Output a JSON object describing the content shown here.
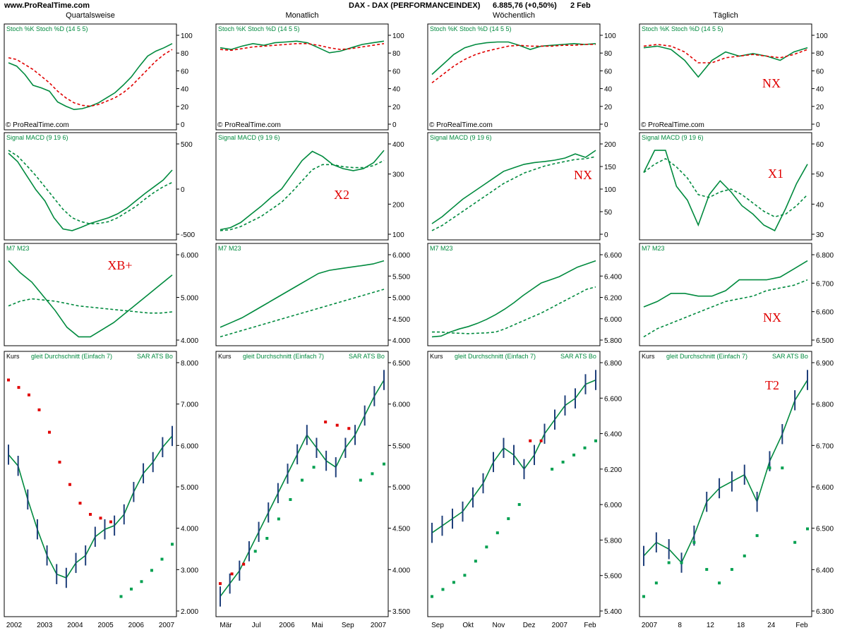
{
  "header": {
    "site": "www.ProRealTime.com",
    "instrument": "DAX - DAX (PERFORMANCEINDEX)",
    "quote": "6.885,76 (+0,50%)",
    "date": "2 Feb"
  },
  "columns": [
    {
      "title": "Quartalsweise",
      "xticks": [
        "2002",
        "2003",
        "2004",
        "2005",
        "2006",
        "2007"
      ]
    },
    {
      "title": "Monatlich",
      "xticks": [
        "Mär",
        "Jul",
        "2006",
        "Mai",
        "Sep",
        "2007"
      ]
    },
    {
      "title": "Wöchentlich",
      "xticks": [
        "Sep",
        "Okt",
        "Nov",
        "Dez",
        "2007",
        "Feb"
      ]
    },
    {
      "title": "Täglich",
      "xticks": [
        "2007",
        "8",
        "12",
        "18",
        "24",
        "Feb"
      ]
    }
  ],
  "colors": {
    "green": "#008a3e",
    "red": "#e00000",
    "bar": "#1f3f7a",
    "sar_green": "#00a050",
    "sar_red": "#e00000",
    "grid": "#c8c8c8",
    "box": "#2a3aa0"
  },
  "rows": [
    {
      "legend": [
        "Stoch %K Stoch %D (14 5 5)"
      ],
      "watermark": "© ProRealTime.com"
    },
    {
      "legend": [
        "Signal MACD (9 19 6)"
      ]
    },
    {
      "legend": [
        "M7 M23"
      ]
    },
    {
      "legend": [
        "Kurs",
        "gleit Durchschnitt (Einfach 7)",
        "SAR ATS Bo"
      ]
    }
  ],
  "yticks": [
    [
      [
        "100",
        "80",
        "60",
        "40",
        "20",
        "0"
      ],
      [
        "100",
        "80",
        "60",
        "40",
        "20",
        "0"
      ],
      [
        "100",
        "80",
        "60",
        "40",
        "20",
        "0"
      ],
      [
        "100",
        "80",
        "60",
        "40",
        "20",
        "0"
      ]
    ],
    [
      [
        "500",
        "0",
        "-500"
      ],
      [
        "400",
        "300",
        "200",
        "100"
      ],
      [
        "200",
        "150",
        "100",
        "50",
        "0"
      ],
      [
        "60",
        "50",
        "40",
        "30"
      ]
    ],
    [
      [
        "6.000",
        "5.000",
        "4.000"
      ],
      [
        "6.000",
        "5.500",
        "5.000",
        "4.500",
        "4.000"
      ],
      [
        "6.600",
        "6.400",
        "6.200",
        "6.000",
        "5.800"
      ],
      [
        "6.800",
        "6.700",
        "6.600",
        "6.500"
      ]
    ],
    [
      [
        "8.000",
        "7.000",
        "6.000",
        "5.000",
        "4.000",
        "3.000",
        "2.000"
      ],
      [
        "6.500",
        "6.000",
        "5.500",
        "5.000",
        "4.500",
        "4.000",
        "3.500"
      ],
      [
        "6.800",
        "6.600",
        "6.400",
        "6.200",
        "6.000",
        "5.800",
        "5.600",
        "5.400"
      ],
      [
        "6.900",
        "6.800",
        "6.700",
        "6.600",
        "6.500",
        "6.400",
        "6.300"
      ]
    ]
  ],
  "annotations": [
    {
      "row": 1,
      "col": 1,
      "text": "X2"
    },
    {
      "row": 0,
      "col": 3,
      "text": "NX"
    },
    {
      "row": 1,
      "col": 2,
      "text": "NX"
    },
    {
      "row": 1,
      "col": 3,
      "text": "X1"
    },
    {
      "row": 2,
      "col": 0,
      "text": "XB+"
    },
    {
      "row": 2,
      "col": 3,
      "text": "NX"
    },
    {
      "row": 3,
      "col": 3,
      "text": "T2"
    }
  ],
  "chart_data": {
    "type": "line",
    "title": "DAX - DAX (PERFORMANCEINDEX) 6.885,76 (+0,50%) 2 Feb",
    "layout": "4x4 panel grid: columns = timeframe (quarterly, monthly, weekly, daily), rows = Stochastic, MACD signal, M7/M23 moving averages, price",
    "panels": [
      {
        "row": 0,
        "col": 0,
        "indicator": "Stoch",
        "k": [
          72,
          68,
          58,
          45,
          42,
          38,
          25,
          20,
          16,
          17,
          20,
          24,
          30,
          36,
          45,
          55,
          68,
          80,
          86,
          90,
          95
        ],
        "d": [
          78,
          76,
          70,
          64,
          56,
          48,
          38,
          30,
          24,
          21,
          20,
          22,
          26,
          30,
          36,
          44,
          54,
          64,
          74,
          82,
          88
        ]
      },
      {
        "row": 0,
        "col": 1,
        "indicator": "Stoch",
        "k": [
          90,
          88,
          92,
          95,
          93,
          96,
          97,
          98,
          96,
          90,
          84,
          86,
          90,
          94,
          96,
          98
        ],
        "d": [
          88,
          87,
          89,
          91,
          92,
          93,
          94,
          95,
          95,
          93,
          90,
          88,
          89,
          91,
          93,
          95
        ]
      },
      {
        "row": 0,
        "col": 2,
        "indicator": "Stoch",
        "k": [
          58,
          70,
          82,
          90,
          94,
          96,
          97,
          97,
          93,
          88,
          92,
          93,
          94,
          95,
          94,
          95
        ],
        "d": [
          48,
          58,
          68,
          76,
          82,
          86,
          89,
          92,
          93,
          92,
          92,
          92,
          93,
          93,
          94,
          94
        ]
      },
      {
        "row": 0,
        "col": 3,
        "indicator": "Stoch",
        "k": [
          90,
          92,
          88,
          75,
          55,
          75,
          85,
          80,
          83,
          80,
          75,
          85,
          90
        ],
        "d": [
          92,
          94,
          92,
          85,
          72,
          72,
          78,
          80,
          82,
          80,
          78,
          82,
          88
        ]
      },
      {
        "row": 1,
        "col": 0,
        "indicator": "MACD",
        "macd": [
          900,
          750,
          500,
          250,
          50,
          -250,
          -450,
          -480,
          -420,
          -350,
          -300,
          -250,
          -180,
          -80,
          50,
          180,
          300,
          420,
          600
        ],
        "signal": [
          950,
          850,
          680,
          500,
          300,
          100,
          -100,
          -250,
          -320,
          -360,
          -350,
          -320,
          -250,
          -150,
          -50,
          80,
          200,
          300,
          380
        ]
      },
      {
        "row": 1,
        "col": 1,
        "indicator": "MACD",
        "macd": [
          100,
          110,
          135,
          175,
          215,
          260,
          300,
          370,
          440,
          485,
          460,
          420,
          400,
          390,
          400,
          430,
          490
        ],
        "signal": [
          95,
          100,
          115,
          140,
          165,
          200,
          235,
          285,
          340,
          395,
          420,
          420,
          410,
          405,
          405,
          415,
          440
        ]
      },
      {
        "row": 1,
        "col": 2,
        "indicator": "MACD",
        "macd": [
          0,
          20,
          45,
          70,
          90,
          110,
          130,
          150,
          160,
          170,
          175,
          178,
          182,
          188,
          200,
          190,
          210
        ],
        "signal": [
          -20,
          -5,
          15,
          35,
          55,
          75,
          95,
          115,
          130,
          145,
          155,
          165,
          172,
          178,
          184,
          186,
          192
        ]
      },
      {
        "row": 1,
        "col": 3,
        "indicator": "MACD",
        "macd": [
          52,
          60,
          60,
          47,
          42,
          33,
          44,
          49,
          45,
          40,
          37,
          33,
          31,
          39,
          48,
          55
        ],
        "signal": [
          52,
          55,
          57,
          54,
          50,
          44,
          43,
          45,
          46,
          44,
          41,
          38,
          36,
          37,
          40,
          44
        ]
      },
      {
        "row": 2,
        "col": 0,
        "indicator": "M7 M23",
        "m7": [
          6800,
          6300,
          5900,
          5300,
          4700,
          4000,
          3600,
          3600,
          3900,
          4200,
          4600,
          5000,
          5400,
          5800,
          6200
        ],
        "m23": [
          4900,
          5100,
          5200,
          5150,
          5100,
          5000,
          4900,
          4850,
          4800,
          4750,
          4700,
          4650,
          4600,
          4600,
          4650
        ]
      },
      {
        "row": 2,
        "col": 1,
        "indicator": "M7 M23",
        "m7": [
          4000,
          4150,
          4300,
          4500,
          4700,
          4900,
          5100,
          5300,
          5500,
          5700,
          5800,
          5850,
          5900,
          5950,
          6000,
          6100
        ],
        "m23": [
          3700,
          3800,
          3900,
          4000,
          4100,
          4200,
          4300,
          4400,
          4500,
          4600,
          4700,
          4800,
          4900,
          5000,
          5100,
          5200
        ]
      },
      {
        "row": 2,
        "col": 2,
        "indicator": "M7 M23",
        "m7": [
          5700,
          5710,
          5760,
          5800,
          5830,
          5870,
          5920,
          5980,
          6050,
          6130,
          6220,
          6300,
          6380,
          6420,
          6460,
          6520,
          6580,
          6620,
          6660
        ],
        "m23": [
          5760,
          5760,
          5750,
          5745,
          5740,
          5745,
          5750,
          5760,
          5800,
          5850,
          5900,
          5950,
          6000,
          6060,
          6120,
          6180,
          6240,
          6300,
          6330
        ]
      },
      {
        "row": 2,
        "col": 3,
        "indicator": "M7 M23",
        "m7": [
          6620,
          6640,
          6670,
          6670,
          6660,
          6660,
          6680,
          6720,
          6720,
          6720,
          6730,
          6760,
          6790
        ],
        "m23": [
          6510,
          6540,
          6560,
          6580,
          6600,
          6620,
          6640,
          6650,
          6660,
          6680,
          6690,
          6700,
          6720
        ]
      },
      {
        "row": 3,
        "col": 0,
        "indicator": "Kurs",
        "close": [
          6200,
          5900,
          5000,
          4200,
          3500,
          3000,
          2900,
          3300,
          3500,
          4000,
          4200,
          4300,
          4600,
          5200,
          5700,
          6000,
          6400,
          6700
        ],
        "sar": [
          8200,
          8000,
          7800,
          7400,
          6800,
          6000,
          5400,
          4900,
          4600,
          4500,
          4400,
          2400,
          2600,
          2800,
          3100,
          3400,
          3800
        ]
      },
      {
        "row": 3,
        "col": 1,
        "indicator": "Kurs",
        "close": [
          3500,
          3700,
          3900,
          4200,
          4500,
          4800,
          5100,
          5400,
          5700,
          6000,
          5800,
          5600,
          5500,
          5800,
          6000,
          6300,
          6600,
          6850
        ],
        "sar": [
          3700,
          3850,
          4000,
          4200,
          4400,
          4700,
          5000,
          5300,
          5500,
          6200,
          6150,
          6100,
          5300,
          5400,
          5550
        ]
      },
      {
        "row": 3,
        "col": 2,
        "indicator": "Kurs",
        "close": [
          5800,
          5850,
          5900,
          5950,
          6050,
          6150,
          6300,
          6400,
          6350,
          6250,
          6350,
          6500,
          6600,
          6700,
          6750,
          6850,
          6880
        ],
        "sar": [
          5350,
          5400,
          5450,
          5500,
          5600,
          5700,
          5800,
          5900,
          6000,
          6450,
          6450,
          6250,
          6300,
          6350,
          6400,
          6450
        ]
      },
      {
        "row": 3,
        "col": 3,
        "indicator": "Kurs",
        "close": [
          6620,
          6640,
          6630,
          6610,
          6650,
          6700,
          6720,
          6730,
          6740,
          6700,
          6760,
          6800,
          6850,
          6880
        ],
        "sar": [
          6560,
          6580,
          6610,
          6610,
          6640,
          6600,
          6580,
          6600,
          6620,
          6650,
          6750,
          6750,
          6640,
          6660
        ]
      }
    ]
  }
}
